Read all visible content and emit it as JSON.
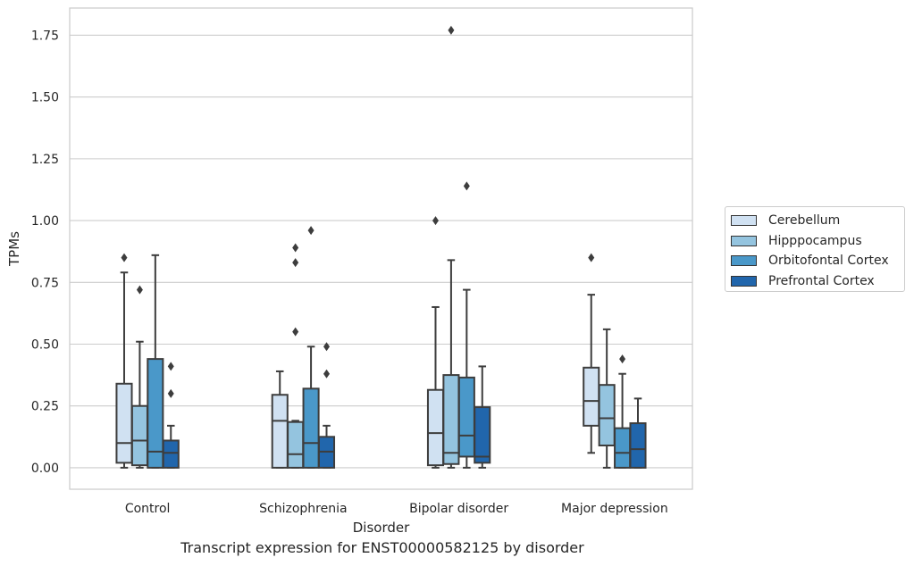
{
  "chart_data": {
    "type": "box",
    "xlabel": "Disorder",
    "ylabel": "TPMs",
    "caption": "Transcript expression for ENST00000582125 by disorder",
    "ylim": [
      -0.087,
      1.86
    ],
    "yticks": [
      0.0,
      0.25,
      0.5,
      0.75,
      1.0,
      1.25,
      1.5,
      1.75
    ],
    "ytick_labels": [
      "0.00",
      "0.25",
      "0.50",
      "0.75",
      "1.00",
      "1.25",
      "1.50",
      "1.75"
    ],
    "grid": "horizontal",
    "legend_position": "right",
    "categories": [
      "Control",
      "Schizophrenia",
      "Bipolar disorder",
      "Major depression"
    ],
    "series": [
      {
        "name": "Cerebellum",
        "color": "#d0e1f2",
        "boxes": [
          {
            "whislo": 0.0,
            "q1": 0.02,
            "med": 0.1,
            "q3": 0.34,
            "whishi": 0.79,
            "fliers": [
              0.85
            ]
          },
          {
            "whislo": 0.0,
            "q1": 0.0,
            "med": 0.19,
            "q3": 0.295,
            "whishi": 0.39,
            "fliers": []
          },
          {
            "whislo": 0.0,
            "q1": 0.01,
            "med": 0.14,
            "q3": 0.315,
            "whishi": 0.65,
            "fliers": [
              1.0
            ]
          },
          {
            "whislo": 0.06,
            "q1": 0.17,
            "med": 0.27,
            "q3": 0.405,
            "whishi": 0.7,
            "fliers": [
              0.85
            ]
          }
        ]
      },
      {
        "name": "Hipppocampus",
        "color": "#94c4df",
        "boxes": [
          {
            "whislo": 0.0,
            "q1": 0.01,
            "med": 0.11,
            "q3": 0.25,
            "whishi": 0.51,
            "fliers": [
              0.72
            ]
          },
          {
            "whislo": 0.0,
            "q1": 0.0,
            "med": 0.055,
            "q3": 0.185,
            "whishi": 0.19,
            "fliers": [
              0.55,
              0.83,
              0.89
            ]
          },
          {
            "whislo": 0.0,
            "q1": 0.015,
            "med": 0.06,
            "q3": 0.375,
            "whishi": 0.84,
            "fliers": [
              1.77
            ]
          },
          {
            "whislo": 0.0,
            "q1": 0.09,
            "med": 0.2,
            "q3": 0.335,
            "whishi": 0.56,
            "fliers": []
          }
        ]
      },
      {
        "name": "Orbitofontal Cortex",
        "color": "#4a98c9",
        "boxes": [
          {
            "whislo": 0.0,
            "q1": 0.0,
            "med": 0.065,
            "q3": 0.44,
            "whishi": 0.86,
            "fliers": []
          },
          {
            "whislo": 0.0,
            "q1": 0.0,
            "med": 0.1,
            "q3": 0.32,
            "whishi": 0.49,
            "fliers": [
              0.96
            ]
          },
          {
            "whislo": 0.0,
            "q1": 0.045,
            "med": 0.13,
            "q3": 0.365,
            "whishi": 0.72,
            "fliers": [
              1.14
            ]
          },
          {
            "whislo": 0.0,
            "q1": 0.0,
            "med": 0.06,
            "q3": 0.16,
            "whishi": 0.38,
            "fliers": [
              0.44
            ]
          }
        ]
      },
      {
        "name": "Prefrontal Cortex",
        "color": "#2166ac",
        "boxes": [
          {
            "whislo": 0.0,
            "q1": 0.0,
            "med": 0.06,
            "q3": 0.11,
            "whishi": 0.17,
            "fliers": [
              0.3,
              0.41
            ]
          },
          {
            "whislo": 0.0,
            "q1": 0.0,
            "med": 0.065,
            "q3": 0.125,
            "whishi": 0.17,
            "fliers": [
              0.38,
              0.49
            ]
          },
          {
            "whislo": 0.0,
            "q1": 0.02,
            "med": 0.045,
            "q3": 0.245,
            "whishi": 0.41,
            "fliers": []
          },
          {
            "whislo": 0.0,
            "q1": 0.0,
            "med": 0.075,
            "q3": 0.18,
            "whishi": 0.28,
            "fliers": []
          }
        ]
      }
    ]
  }
}
